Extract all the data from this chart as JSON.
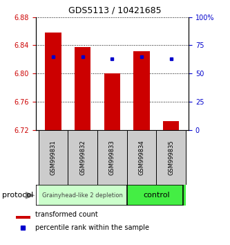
{
  "title": "GDS5113 / 10421685",
  "samples": [
    "GSM999831",
    "GSM999832",
    "GSM999833",
    "GSM999834",
    "GSM999835"
  ],
  "bar_bottom": 6.72,
  "bar_tops": [
    6.858,
    6.838,
    6.8,
    6.832,
    6.732
  ],
  "percentile_ranks": [
    65,
    65,
    63,
    65,
    63
  ],
  "ylim": [
    6.72,
    6.88
  ],
  "yticks": [
    6.72,
    6.76,
    6.8,
    6.84,
    6.88
  ],
  "right_yticks": [
    0,
    25,
    50,
    75,
    100
  ],
  "bar_color": "#cc0000",
  "percentile_color": "#0000cc",
  "group1_label": "Grainyhead-like 2 depletion",
  "group2_label": "control",
  "group1_color": "#ccffcc",
  "group2_color": "#44ee44",
  "group1_indices": [
    0,
    1,
    2
  ],
  "group2_indices": [
    3,
    4
  ],
  "protocol_label": "protocol",
  "legend_bar_label": "transformed count",
  "legend_pct_label": "percentile rank within the sample",
  "ylabel_left_color": "#cc0000",
  "ylabel_right_color": "#0000cc",
  "bar_width": 0.55,
  "title_fontsize": 9,
  "tick_fontsize": 7,
  "sample_fontsize": 6,
  "legend_fontsize": 7,
  "group_label_fontsize": 7
}
